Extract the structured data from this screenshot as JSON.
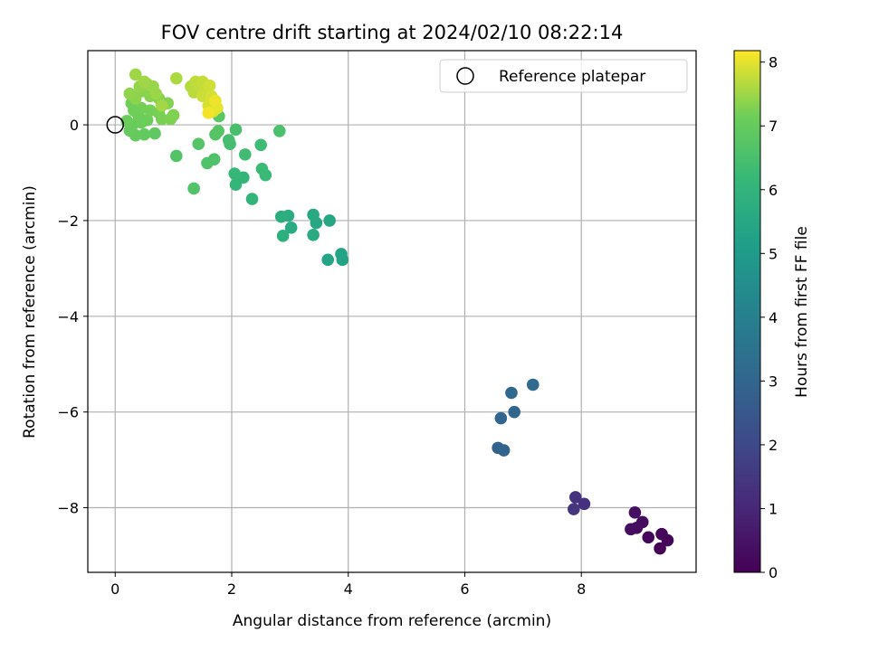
{
  "chart_data": {
    "type": "scatter",
    "title": "FOV centre drift starting at 2024/02/10 08:22:14",
    "xlabel": "Angular distance from reference (arcmin)",
    "ylabel": "Rotation from reference (arcmin)",
    "xlim": [
      -0.47,
      9.97
    ],
    "ylim": [
      -9.35,
      1.55
    ],
    "xticks": [
      0,
      2,
      4,
      6,
      8
    ],
    "yticks": [
      0,
      -2,
      -4,
      -6,
      -8
    ],
    "xtick_labels": [
      "0",
      "2",
      "4",
      "6",
      "8"
    ],
    "ytick_labels": [
      "0",
      "−2",
      "−4",
      "−6",
      "−8"
    ],
    "grid": true,
    "legend": {
      "placement": "upper-right",
      "entries": [
        {
          "label": "Reference platepar",
          "marker": "open-circle"
        }
      ]
    },
    "reference_point": {
      "x": 0,
      "y": 0
    },
    "colorbar": {
      "label": "Hours from first FF file",
      "colormap": "viridis",
      "range": [
        0,
        8.18
      ],
      "ticks": [
        0,
        1,
        2,
        3,
        4,
        5,
        6,
        7,
        8
      ],
      "tick_labels": [
        "0",
        "1",
        "2",
        "3",
        "4",
        "5",
        "6",
        "7",
        "8"
      ]
    },
    "points": [
      {
        "x": 9.35,
        "y": -8.85,
        "c": 0.05
      },
      {
        "x": 9.48,
        "y": -8.68,
        "c": 0.1
      },
      {
        "x": 9.38,
        "y": -8.55,
        "c": 0.15
      },
      {
        "x": 9.15,
        "y": -8.62,
        "c": 0.2
      },
      {
        "x": 9.05,
        "y": -8.3,
        "c": 0.25
      },
      {
        "x": 8.95,
        "y": -8.42,
        "c": 0.3
      },
      {
        "x": 8.85,
        "y": -8.45,
        "c": 0.35
      },
      {
        "x": 8.92,
        "y": -8.1,
        "c": 0.4
      },
      {
        "x": 8.05,
        "y": -7.92,
        "c": 1.3
      },
      {
        "x": 7.9,
        "y": -7.78,
        "c": 1.35
      },
      {
        "x": 7.87,
        "y": -8.03,
        "c": 1.4
      },
      {
        "x": 6.57,
        "y": -6.75,
        "c": 2.9
      },
      {
        "x": 6.67,
        "y": -6.8,
        "c": 2.95
      },
      {
        "x": 6.62,
        "y": -6.13,
        "c": 3.0
      },
      {
        "x": 6.85,
        "y": -6.0,
        "c": 3.05
      },
      {
        "x": 6.8,
        "y": -5.6,
        "c": 3.1
      },
      {
        "x": 7.17,
        "y": -5.43,
        "c": 3.15
      },
      {
        "x": 3.9,
        "y": -2.82,
        "c": 5.3
      },
      {
        "x": 3.88,
        "y": -2.7,
        "c": 5.35
      },
      {
        "x": 3.65,
        "y": -2.82,
        "c": 5.4
      },
      {
        "x": 3.68,
        "y": -2.0,
        "c": 5.45
      },
      {
        "x": 3.45,
        "y": -2.05,
        "c": 5.5
      },
      {
        "x": 3.4,
        "y": -1.88,
        "c": 5.55
      },
      {
        "x": 3.4,
        "y": -2.3,
        "c": 5.6
      },
      {
        "x": 3.02,
        "y": -2.15,
        "c": 5.65
      },
      {
        "x": 2.97,
        "y": -1.9,
        "c": 5.7
      },
      {
        "x": 2.85,
        "y": -1.92,
        "c": 5.75
      },
      {
        "x": 2.88,
        "y": -2.32,
        "c": 5.8
      },
      {
        "x": 2.35,
        "y": -1.55,
        "c": 6.0
      },
      {
        "x": 2.2,
        "y": -1.1,
        "c": 6.05
      },
      {
        "x": 2.07,
        "y": -1.25,
        "c": 6.1
      },
      {
        "x": 2.05,
        "y": -1.02,
        "c": 6.15
      },
      {
        "x": 2.58,
        "y": -1.05,
        "c": 6.2
      },
      {
        "x": 2.52,
        "y": -0.92,
        "c": 6.25
      },
      {
        "x": 2.5,
        "y": -0.42,
        "c": 6.3
      },
      {
        "x": 2.23,
        "y": -0.62,
        "c": 6.35
      },
      {
        "x": 1.97,
        "y": -0.4,
        "c": 6.4
      },
      {
        "x": 1.95,
        "y": -0.32,
        "c": 6.45
      },
      {
        "x": 2.07,
        "y": -0.1,
        "c": 6.5
      },
      {
        "x": 2.82,
        "y": -0.13,
        "c": 6.55
      },
      {
        "x": 1.7,
        "y": -0.72,
        "c": 6.6
      },
      {
        "x": 1.58,
        "y": -0.8,
        "c": 6.62
      },
      {
        "x": 1.35,
        "y": -1.33,
        "c": 6.65
      },
      {
        "x": 1.05,
        "y": -0.65,
        "c": 6.67
      },
      {
        "x": 1.43,
        "y": -0.4,
        "c": 6.7
      },
      {
        "x": 1.72,
        "y": -0.2,
        "c": 6.72
      },
      {
        "x": 1.77,
        "y": -0.13,
        "c": 6.75
      },
      {
        "x": 1.78,
        "y": 0.18,
        "c": 6.78
      },
      {
        "x": 0.68,
        "y": -0.18,
        "c": 6.9
      },
      {
        "x": 0.5,
        "y": -0.2,
        "c": 6.95
      },
      {
        "x": 0.35,
        "y": -0.22,
        "c": 7.0
      },
      {
        "x": 0.25,
        "y": -0.12,
        "c": 7.02
      },
      {
        "x": 0.3,
        "y": 0.0,
        "c": 7.04
      },
      {
        "x": 0.2,
        "y": 0.08,
        "c": 7.06
      },
      {
        "x": 0.45,
        "y": 0.05,
        "c": 7.08
      },
      {
        "x": 0.55,
        "y": 0.1,
        "c": 7.1
      },
      {
        "x": 0.4,
        "y": 0.2,
        "c": 7.12
      },
      {
        "x": 0.32,
        "y": 0.3,
        "c": 7.14
      },
      {
        "x": 0.28,
        "y": 0.45,
        "c": 7.16
      },
      {
        "x": 0.45,
        "y": 0.35,
        "c": 7.18
      },
      {
        "x": 0.6,
        "y": 0.3,
        "c": 7.2
      },
      {
        "x": 0.75,
        "y": 0.25,
        "c": 7.22
      },
      {
        "x": 0.8,
        "y": 0.12,
        "c": 7.24
      },
      {
        "x": 0.95,
        "y": 0.12,
        "c": 7.26
      },
      {
        "x": 1.0,
        "y": 0.2,
        "c": 7.28
      },
      {
        "x": 0.9,
        "y": 0.45,
        "c": 7.3
      },
      {
        "x": 0.75,
        "y": 0.55,
        "c": 7.32
      },
      {
        "x": 0.6,
        "y": 0.6,
        "c": 7.34
      },
      {
        "x": 0.45,
        "y": 0.7,
        "c": 7.36
      },
      {
        "x": 0.35,
        "y": 0.55,
        "c": 7.38
      },
      {
        "x": 0.25,
        "y": 0.65,
        "c": 7.4
      },
      {
        "x": 0.42,
        "y": 0.8,
        "c": 7.42
      },
      {
        "x": 0.55,
        "y": 0.85,
        "c": 7.44
      },
      {
        "x": 0.65,
        "y": 0.8,
        "c": 7.46
      },
      {
        "x": 0.7,
        "y": 0.65,
        "c": 7.48
      },
      {
        "x": 0.35,
        "y": 1.05,
        "c": 7.5
      },
      {
        "x": 0.5,
        "y": 0.9,
        "c": 7.52
      },
      {
        "x": 0.8,
        "y": 0.4,
        "c": 7.54
      },
      {
        "x": 1.05,
        "y": 0.97,
        "c": 7.6
      },
      {
        "x": 1.3,
        "y": 0.8,
        "c": 7.65
      },
      {
        "x": 1.35,
        "y": 0.68,
        "c": 7.7
      },
      {
        "x": 1.38,
        "y": 0.9,
        "c": 7.72
      },
      {
        "x": 1.45,
        "y": 0.8,
        "c": 7.75
      },
      {
        "x": 1.5,
        "y": 0.9,
        "c": 7.78
      },
      {
        "x": 1.55,
        "y": 0.72,
        "c": 7.8
      },
      {
        "x": 1.5,
        "y": 0.6,
        "c": 7.82
      },
      {
        "x": 1.62,
        "y": 0.82,
        "c": 7.85
      },
      {
        "x": 1.65,
        "y": 0.6,
        "c": 7.88
      },
      {
        "x": 1.6,
        "y": 0.4,
        "c": 7.9
      },
      {
        "x": 1.68,
        "y": 0.28,
        "c": 7.95
      },
      {
        "x": 1.75,
        "y": 0.35,
        "c": 8.0
      },
      {
        "x": 1.72,
        "y": 0.5,
        "c": 8.05
      },
      {
        "x": 1.6,
        "y": 0.25,
        "c": 8.1
      }
    ]
  }
}
